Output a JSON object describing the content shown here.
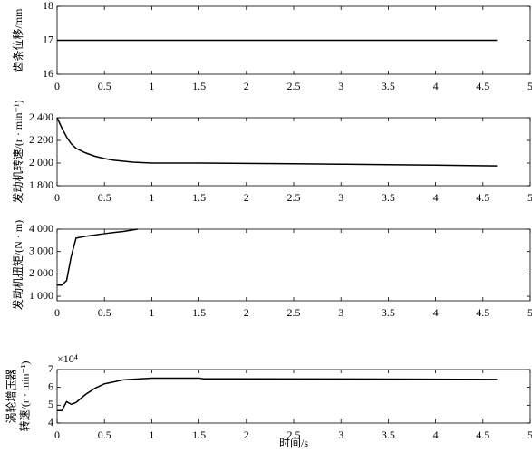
{
  "chart_data": [
    {
      "type": "line",
      "ylabel": [
        "齿条位移/mm"
      ],
      "xlim": [
        0,
        5
      ],
      "xticks": [
        0,
        0.5,
        1,
        1.5,
        2,
        2.5,
        3,
        3.5,
        4,
        4.5,
        5
      ],
      "ylim": [
        16,
        18
      ],
      "yticks": [
        16,
        17,
        18
      ],
      "x": [
        0,
        4.65
      ],
      "values": [
        17,
        17
      ],
      "color": "#000000"
    },
    {
      "type": "line",
      "ylabel": [
        "发动机转速/(r · min⁻¹)"
      ],
      "xlim": [
        0,
        5
      ],
      "xticks": [
        0,
        0.5,
        1,
        1.5,
        2,
        2.5,
        3,
        3.5,
        4,
        4.5,
        5
      ],
      "ylim": [
        1800,
        2400
      ],
      "yticks": [
        {
          "value": 1800,
          "label": "1 800"
        },
        {
          "value": 2000,
          "label": "2 000"
        },
        {
          "value": 2200,
          "label": "2 200"
        },
        {
          "value": 2400,
          "label": "2 400"
        }
      ],
      "x": [
        0,
        0.05,
        0.1,
        0.15,
        0.2,
        0.3,
        0.4,
        0.5,
        0.6,
        0.8,
        1.0,
        1.5,
        2.0,
        2.5,
        3.0,
        3.5,
        4.0,
        4.65
      ],
      "values": [
        2400,
        2310,
        2230,
        2170,
        2130,
        2090,
        2060,
        2040,
        2025,
        2008,
        2000,
        2000,
        1997,
        1994,
        1990,
        1986,
        1982,
        1975
      ],
      "color": "#000000"
    },
    {
      "type": "line",
      "ylabel": [
        "发动机扭矩/(N · m)"
      ],
      "xlim": [
        0,
        5
      ],
      "xticks": [
        0,
        0.5,
        1,
        1.5,
        2,
        2.5,
        3,
        3.5,
        4,
        4.5,
        5
      ],
      "ylim": [
        800,
        4000
      ],
      "yticks": [
        {
          "value": 1000,
          "label": "1 000"
        },
        {
          "value": 2000,
          "label": "2 000"
        },
        {
          "value": 3000,
          "label": "3 000"
        },
        {
          "value": 4000,
          "label": "4 000"
        }
      ],
      "x": [
        0,
        0.05,
        0.1,
        0.15,
        0.2,
        0.3,
        0.5,
        0.7,
        0.85
      ],
      "values": [
        1500,
        1500,
        1700,
        2800,
        3600,
        3680,
        3800,
        3900,
        4000
      ],
      "color": "#000000"
    },
    {
      "type": "line",
      "ylabel": [
        "涡轮增压器",
        "转速/(r · min⁻¹)"
      ],
      "annotation": "×10⁴",
      "xlabel": "时间/s",
      "xlim": [
        0,
        5
      ],
      "xticks": [
        0,
        0.5,
        1,
        1.5,
        2,
        2.5,
        3,
        3.5,
        4,
        4.5,
        5
      ],
      "ylim": [
        4,
        7
      ],
      "yticks": [
        4,
        5,
        6,
        7
      ],
      "x": [
        0,
        0.05,
        0.1,
        0.15,
        0.2,
        0.3,
        0.4,
        0.5,
        0.7,
        1.0,
        1.5,
        1.55,
        3.0,
        4.65
      ],
      "values": [
        4.7,
        4.7,
        5.2,
        5.05,
        5.15,
        5.6,
        5.95,
        6.2,
        6.42,
        6.52,
        6.52,
        6.48,
        6.47,
        6.45
      ],
      "color": "#000000"
    }
  ]
}
